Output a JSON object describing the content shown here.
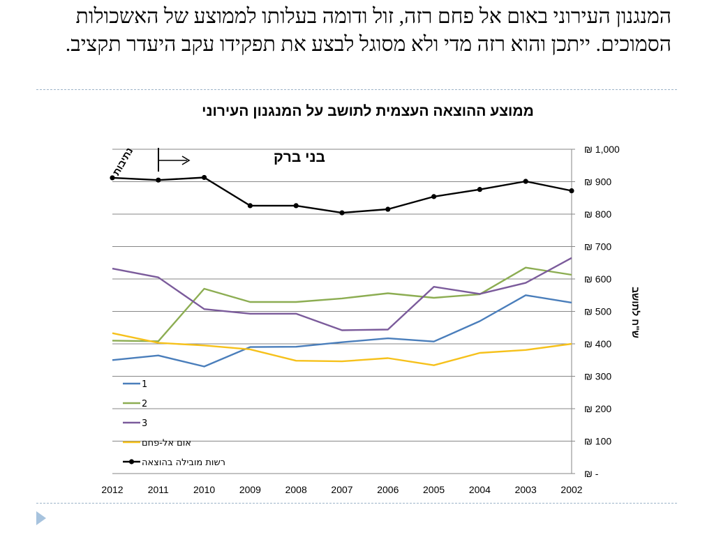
{
  "slide": {
    "text": "המנגנון העירוני באום אל פחם רזה, זול ודומה בעלותו לממוצע של האשכולות הסמוכים. ייתכן והוא רזה מדי ולא מסוגל לבצע את תפקידו עקב היעדר תקציב."
  },
  "chart_data": {
    "type": "line",
    "title": "ממוצע ההוצאה העצמית לתושב על המנגנון העירוני",
    "ylabel": "ש\"ח לתושב",
    "xlabel": "",
    "x": [
      "2012",
      "2011",
      "2010",
      "2009",
      "2008",
      "2007",
      "2006",
      "2005",
      "2004",
      "2003",
      "2002"
    ],
    "ylim": [
      0,
      1000
    ],
    "y_ticks": [
      {
        "value": 0,
        "label": "₪ -"
      },
      {
        "value": 100,
        "label": "₪ 100"
      },
      {
        "value": 200,
        "label": "₪ 200"
      },
      {
        "value": 300,
        "label": "₪ 300"
      },
      {
        "value": 400,
        "label": "₪ 400"
      },
      {
        "value": 500,
        "label": "₪ 500"
      },
      {
        "value": 600,
        "label": "₪ 600"
      },
      {
        "value": 700,
        "label": "₪ 700"
      },
      {
        "value": 800,
        "label": "₪ 800"
      },
      {
        "value": 900,
        "label": "₪ 900"
      },
      {
        "value": 1000,
        "label": "₪ 1,000"
      }
    ],
    "y_axis_side": "right",
    "grid": true,
    "legend_position": "bottom-left",
    "series": [
      {
        "name": "1",
        "color": "#4a7ebb",
        "markers": false,
        "values": [
          350,
          364,
          330,
          390,
          391,
          405,
          417,
          407,
          470,
          550,
          527
        ]
      },
      {
        "name": "2",
        "color": "#8cad52",
        "markers": false,
        "values": [
          410,
          408,
          570,
          529,
          529,
          540,
          556,
          542,
          553,
          635,
          613
        ]
      },
      {
        "name": "3",
        "color": "#7b5b9b",
        "markers": false,
        "values": [
          632,
          605,
          507,
          493,
          493,
          442,
          444,
          576,
          554,
          588,
          665
        ]
      },
      {
        "name": "אום אל-פחם",
        "color": "#f6c11b",
        "markers": false,
        "values": [
          433,
          403,
          395,
          383,
          348,
          346,
          356,
          334,
          372,
          381,
          400
        ]
      },
      {
        "name": "רשות מובילה בהוצאה",
        "color": "#000000",
        "markers": true,
        "values": [
          912,
          905,
          913,
          826,
          826,
          804,
          815,
          854,
          876,
          901,
          872
        ]
      }
    ],
    "annotations": {
      "rotated_label": "נתיבות",
      "arrow_label": "בני ברק"
    }
  }
}
